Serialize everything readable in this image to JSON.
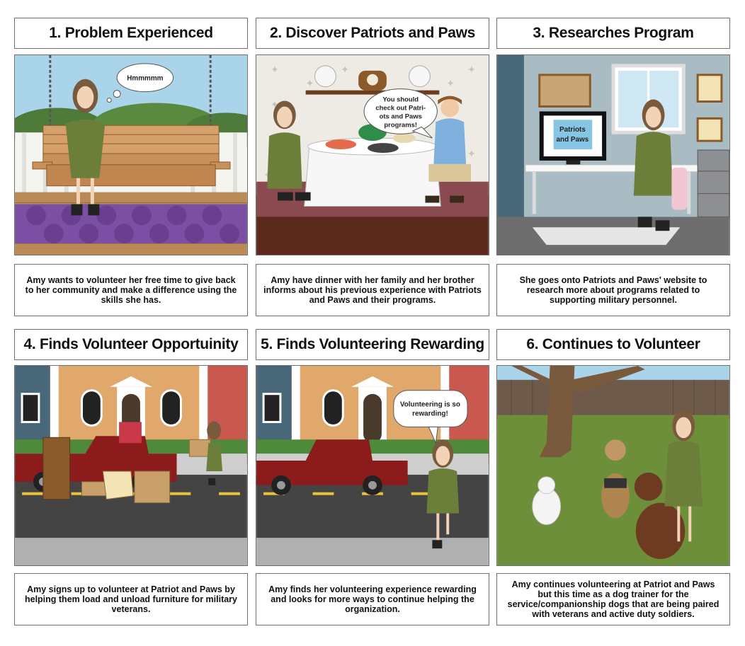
{
  "panels": [
    {
      "title": "1. Problem Experienced",
      "caption": "Amy wants to volunteer her free time to give back to her community and make a difference using the skills she has.",
      "bubble": [
        "Hmmmmm"
      ]
    },
    {
      "title": "2. Discover Patriots and Paws",
      "caption": "Amy have dinner with her family and her brother informs about his previous experience with Patriots and Paws and their programs.",
      "bubble": [
        "You should",
        "check out Patri-",
        "ots and Paws",
        "programs!"
      ]
    },
    {
      "title": "3. Researches Program",
      "caption": "She goes onto Patriots and Paws' website to research more about programs related to supporting military personnel.",
      "screen_text": [
        "Patriots",
        "and Paws"
      ]
    },
    {
      "title": "4. Finds Volunteer Opportuinity",
      "caption": "Amy signs up to volunteer at Patriot and Paws by helping them load and unload furniture for military veterans."
    },
    {
      "title": "5. Finds Volunteering Rewarding",
      "caption": "Amy finds her volunteering experience rewarding and looks for more ways to continue helping the organization.",
      "bubble": [
        "Volunteering is so",
        "rewarding!"
      ]
    },
    {
      "title": "6. Continues to Volunteer",
      "caption": "Amy continues volunteering at Patriot and Paws but this time as a dog trainer for the service/companionship dogs that are being paired with veterans and active duty soldiers."
    }
  ],
  "colors": {
    "border": "#6f6f6f",
    "sky": "#a9d4ea",
    "amy_dress": "#6b7f3a",
    "truck": "#8c1c1c",
    "grass": "#6d8f3a"
  }
}
